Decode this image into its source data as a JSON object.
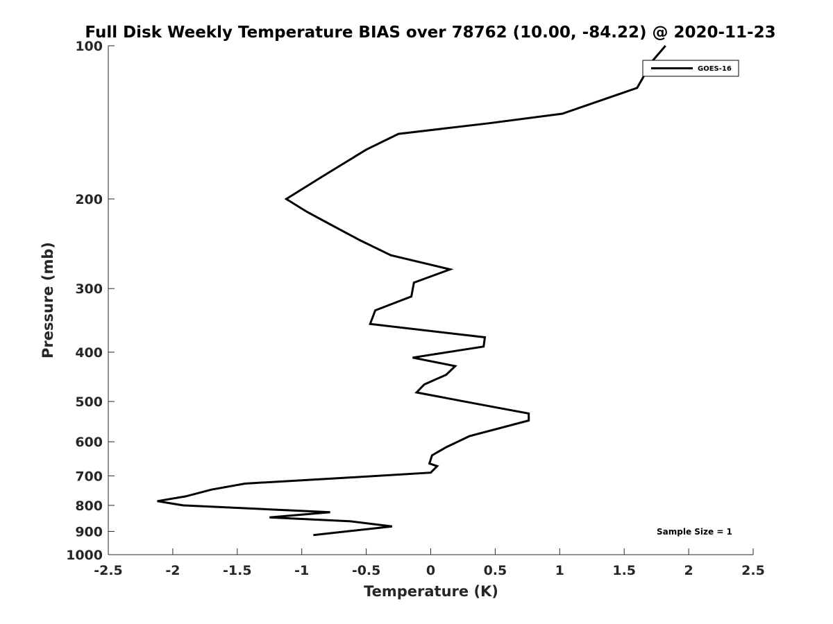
{
  "chart_data": {
    "type": "line",
    "title": "Full Disk Weekly Temperature BIAS over 78762 (10.00, -84.22) @ 2020-11-23",
    "xlabel": "Temperature (K)",
    "ylabel": "Pressure (mb)",
    "xlim": [
      -2.5,
      2.5
    ],
    "ylim": [
      100,
      1000
    ],
    "yscale": "log",
    "y_reversed": true,
    "x_ticks": [
      -2.5,
      -2,
      -1.5,
      -1,
      -0.5,
      0,
      0.5,
      1,
      1.5,
      2,
      2.5
    ],
    "x_tick_labels": [
      "-2.5",
      "-2",
      "-1.5",
      "-1",
      "-0.5",
      "0",
      "0.5",
      "1",
      "1.5",
      "2",
      "2.5"
    ],
    "y_ticks": [
      100,
      200,
      300,
      400,
      500,
      600,
      700,
      800,
      900,
      1000
    ],
    "y_tick_labels": [
      "100",
      "200",
      "300",
      "400",
      "500",
      "600",
      "700",
      "800",
      "900",
      "1000"
    ],
    "grid": false,
    "legend_position": "top-right",
    "annotation": "Sample Size = 1",
    "series": [
      {
        "name": "GOES-16",
        "color": "#000000",
        "points": [
          [
            1.82,
            100
          ],
          [
            1.72,
            107
          ],
          [
            1.6,
            121
          ],
          [
            1.02,
            136
          ],
          [
            0.45,
            142
          ],
          [
            -0.25,
            149
          ],
          [
            -0.5,
            160
          ],
          [
            -0.83,
            180
          ],
          [
            -1.12,
            200
          ],
          [
            -0.96,
            212
          ],
          [
            -0.77,
            225
          ],
          [
            -0.55,
            241
          ],
          [
            -0.31,
            258
          ],
          [
            0.15,
            275
          ],
          [
            -0.13,
            292
          ],
          [
            -0.15,
            311
          ],
          [
            -0.43,
            331
          ],
          [
            -0.47,
            352
          ],
          [
            0.42,
            374
          ],
          [
            0.41,
            390
          ],
          [
            -0.14,
            410
          ],
          [
            0.19,
            426
          ],
          [
            0.12,
            443
          ],
          [
            -0.05,
            463
          ],
          [
            -0.11,
            480
          ],
          [
            0.35,
            505
          ],
          [
            0.76,
            528
          ],
          [
            0.76,
            545
          ],
          [
            0.3,
            585
          ],
          [
            0.12,
            615
          ],
          [
            0.01,
            638
          ],
          [
            -0.01,
            662
          ],
          [
            0.05,
            670
          ],
          [
            0.0,
            690
          ],
          [
            -0.7,
            707
          ],
          [
            -1.44,
            725
          ],
          [
            -1.7,
            745
          ],
          [
            -1.9,
            768
          ],
          [
            -2.12,
            785
          ],
          [
            -1.92,
            800
          ],
          [
            -0.78,
            825
          ],
          [
            -1.25,
            845
          ],
          [
            -0.62,
            860
          ],
          [
            -0.3,
            880
          ],
          [
            -0.91,
            915
          ]
        ]
      }
    ]
  }
}
